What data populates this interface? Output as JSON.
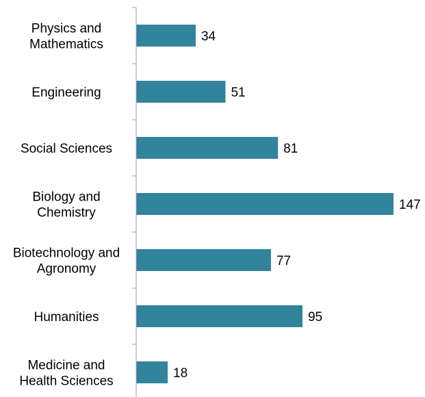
{
  "chart_data": {
    "type": "bar",
    "orientation": "horizontal",
    "title": "",
    "xlabel": "",
    "ylabel": "",
    "categories": [
      [
        "Physics and",
        "Mathematics"
      ],
      [
        "Engineering"
      ],
      [
        "Social Sciences"
      ],
      [
        "Biology and",
        "Chemistry"
      ],
      [
        "Biotechnology and",
        "Agronomy"
      ],
      [
        "Humanities"
      ],
      [
        "Medicine and",
        "Health Sciences"
      ]
    ],
    "values": [
      34,
      51,
      81,
      147,
      77,
      95,
      18
    ],
    "xlim": [
      0,
      147
    ],
    "grid": false,
    "legend": "none",
    "bar_color": "#31849b",
    "axis_color": "#a6a6a6"
  }
}
